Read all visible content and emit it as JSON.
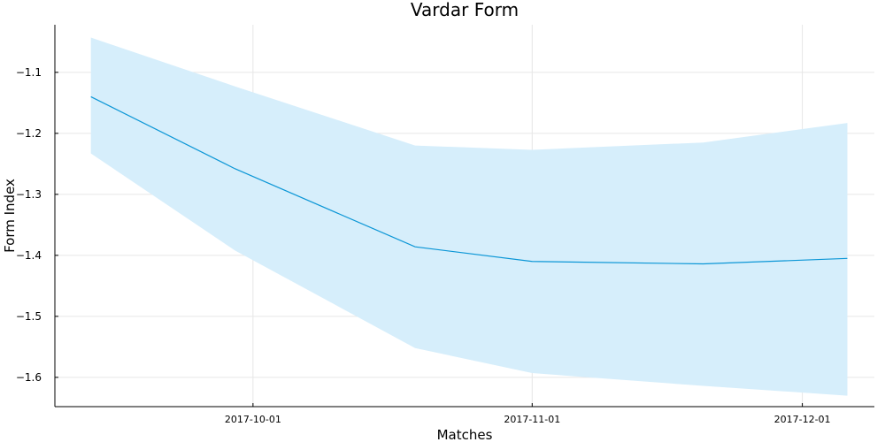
{
  "chart_data": {
    "type": "line",
    "title": "Vardar Form",
    "xlabel": "Matches",
    "ylabel": "Form Index",
    "x": [
      "2017-09-13",
      "2017-09-29",
      "2017-10-19",
      "2017-11-01",
      "2017-11-20",
      "2017-12-06"
    ],
    "series": [
      {
        "values": [
          -1.14,
          -1.258,
          -1.386,
          -1.41,
          -1.414,
          -1.405
        ],
        "upper": [
          -1.043,
          -1.123,
          -1.22,
          -1.227,
          -1.215,
          -1.183
        ],
        "lower": [
          -1.233,
          -1.392,
          -1.552,
          -1.593,
          -1.614,
          -1.63
        ],
        "color": "#0b96d6",
        "band_color": "#d6eefb"
      }
    ],
    "xticks": [
      "2017-10-01",
      "2017-11-01",
      "2017-12-01"
    ],
    "yticks": [
      -1.1,
      -1.2,
      -1.3,
      -1.4,
      -1.5,
      -1.6
    ],
    "ytick_labels": [
      "−1.1",
      "−1.2",
      "−1.3",
      "−1.4",
      "−1.5",
      "−1.6"
    ],
    "ylim": [
      -1.648,
      -1.022
    ],
    "xlim": [
      "2017-09-09",
      "2017-12-09"
    ],
    "grid": true,
    "legend": "none"
  }
}
